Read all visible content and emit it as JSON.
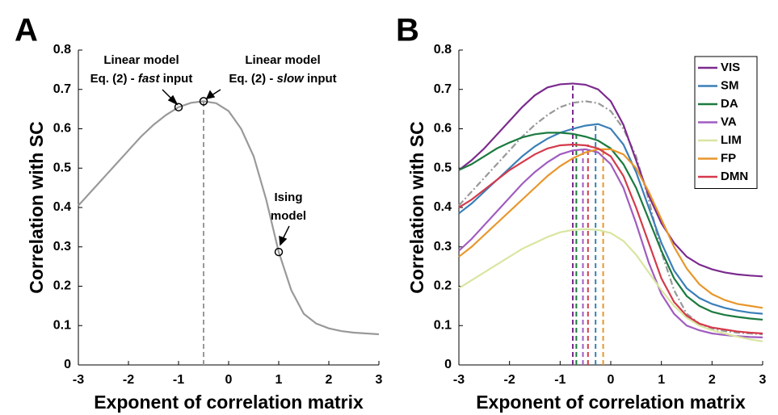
{
  "chart_data": [
    {
      "type": "line",
      "panel_label": "A",
      "x_label": "Exponent of correlation matrix",
      "y_label": "Correlation with SC",
      "xlim": [
        -3,
        3
      ],
      "ylim": [
        0,
        0.8
      ],
      "xticks": [
        -3,
        -2,
        -1,
        0,
        1,
        2,
        3
      ],
      "yticks": [
        0,
        0.1,
        0.2,
        0.3,
        0.4,
        0.5,
        0.6,
        0.7,
        0.8
      ],
      "x": [
        -3,
        -2.75,
        -2.5,
        -2.25,
        -2,
        -1.75,
        -1.5,
        -1.25,
        -1,
        -0.75,
        -0.5,
        -0.25,
        0,
        0.25,
        0.5,
        0.75,
        1,
        1.25,
        1.5,
        1.75,
        2,
        2.25,
        2.5,
        2.75,
        3
      ],
      "series": [
        {
          "color": "#999999",
          "dash": "solid",
          "values": [
            0.405,
            0.44,
            0.475,
            0.51,
            0.545,
            0.58,
            0.61,
            0.635,
            0.655,
            0.666,
            0.67,
            0.665,
            0.645,
            0.6,
            0.53,
            0.42,
            0.287,
            0.19,
            0.13,
            0.105,
            0.093,
            0.086,
            0.082,
            0.08,
            0.078
          ]
        }
      ],
      "points": {
        "x": [
          -1,
          -0.5,
          1
        ],
        "values": [
          0.655,
          0.67,
          0.287
        ]
      },
      "vlines": [
        {
          "x": -0.5,
          "y": 0.67,
          "color": "#999999"
        }
      ],
      "annotations": [
        {
          "line1": "Linear model",
          "line2": [
            "Eq. (2) - ",
            "fast",
            " input"
          ]
        },
        {
          "line1": "Linear model",
          "line2": [
            "Eq. (2) - ",
            "slow",
            " input"
          ]
        },
        {
          "line1": "Ising",
          "line2": [
            "model"
          ]
        }
      ]
    },
    {
      "type": "line",
      "panel_label": "B",
      "x_label": "Exponent of correlation matrix",
      "y_label": "Correlation with SC",
      "xlim": [
        -3,
        3
      ],
      "ylim": [
        0,
        0.8
      ],
      "xticks": [
        -3,
        -2,
        -1,
        0,
        1,
        2,
        3
      ],
      "yticks": [
        0,
        0.1,
        0.2,
        0.3,
        0.4,
        0.5,
        0.6,
        0.7,
        0.8
      ],
      "legend": "upper right",
      "x": [
        -3,
        -2.75,
        -2.5,
        -2.25,
        -2,
        -1.75,
        -1.5,
        -1.25,
        -1,
        -0.75,
        -0.5,
        -0.25,
        0,
        0.25,
        0.5,
        0.75,
        1,
        1.25,
        1.5,
        1.75,
        2,
        2.25,
        2.5,
        2.75,
        3
      ],
      "series": [
        {
          "color": "#999999",
          "dash": "dashdot",
          "values": [
            0.405,
            0.44,
            0.475,
            0.51,
            0.545,
            0.58,
            0.61,
            0.635,
            0.655,
            0.666,
            0.67,
            0.665,
            0.645,
            0.6,
            0.53,
            0.42,
            0.287,
            0.19,
            0.13,
            0.105,
            0.093,
            0.086,
            0.082,
            0.08,
            0.078
          ]
        },
        {
          "name": "VIS",
          "color": "#7b2a8e",
          "dash": "solid",
          "values": [
            0.495,
            0.52,
            0.55,
            0.585,
            0.62,
            0.655,
            0.685,
            0.705,
            0.713,
            0.715,
            0.712,
            0.7,
            0.67,
            0.61,
            0.52,
            0.43,
            0.36,
            0.31,
            0.275,
            0.255,
            0.243,
            0.235,
            0.23,
            0.227,
            0.225
          ]
        },
        {
          "name": "SM",
          "color": "#3a7fb8",
          "dash": "solid",
          "values": [
            0.385,
            0.41,
            0.44,
            0.47,
            0.5,
            0.53,
            0.555,
            0.575,
            0.59,
            0.6,
            0.608,
            0.612,
            0.6,
            0.56,
            0.49,
            0.4,
            0.31,
            0.24,
            0.195,
            0.17,
            0.155,
            0.145,
            0.138,
            0.133,
            0.13
          ]
        },
        {
          "name": "DA",
          "color": "#1b7a3e",
          "dash": "solid",
          "values": [
            0.495,
            0.51,
            0.53,
            0.55,
            0.565,
            0.578,
            0.586,
            0.59,
            0.59,
            0.587,
            0.58,
            0.57,
            0.55,
            0.51,
            0.45,
            0.37,
            0.29,
            0.22,
            0.175,
            0.15,
            0.135,
            0.127,
            0.122,
            0.118,
            0.115
          ]
        },
        {
          "name": "VA",
          "color": "#a05cc0",
          "dash": "solid",
          "values": [
            0.29,
            0.32,
            0.355,
            0.39,
            0.425,
            0.46,
            0.49,
            0.515,
            0.535,
            0.545,
            0.548,
            0.54,
            0.51,
            0.45,
            0.36,
            0.26,
            0.18,
            0.13,
            0.1,
            0.088,
            0.08,
            0.076,
            0.073,
            0.071,
            0.07
          ]
        },
        {
          "name": "LIM",
          "color": "#d8e6a0",
          "dash": "solid",
          "values": [
            0.195,
            0.215,
            0.235,
            0.255,
            0.275,
            0.295,
            0.31,
            0.325,
            0.337,
            0.343,
            0.345,
            0.343,
            0.335,
            0.315,
            0.28,
            0.235,
            0.19,
            0.15,
            0.12,
            0.1,
            0.088,
            0.08,
            0.072,
            0.065,
            0.06
          ]
        },
        {
          "name": "FP",
          "color": "#e8962a",
          "dash": "solid",
          "values": [
            0.275,
            0.3,
            0.33,
            0.36,
            0.39,
            0.42,
            0.45,
            0.48,
            0.505,
            0.525,
            0.54,
            0.548,
            0.548,
            0.535,
            0.5,
            0.44,
            0.37,
            0.3,
            0.245,
            0.205,
            0.18,
            0.165,
            0.155,
            0.15,
            0.145
          ]
        },
        {
          "name": "DMN",
          "color": "#d43a4a",
          "dash": "solid",
          "values": [
            0.4,
            0.42,
            0.445,
            0.47,
            0.495,
            0.515,
            0.535,
            0.55,
            0.558,
            0.56,
            0.558,
            0.55,
            0.53,
            0.48,
            0.4,
            0.31,
            0.22,
            0.16,
            0.125,
            0.105,
            0.095,
            0.09,
            0.085,
            0.082,
            0.08
          ]
        }
      ],
      "vlines": [
        {
          "x": -0.75,
          "y": 0.715,
          "color": "#7b2a8e"
        },
        {
          "x": -0.68,
          "y": 0.59,
          "color": "#1b7a3e"
        },
        {
          "x": -0.55,
          "y": 0.548,
          "color": "#a05cc0"
        },
        {
          "x": -0.45,
          "y": 0.56,
          "color": "#d43a4a"
        },
        {
          "x": -0.3,
          "y": 0.612,
          "color": "#3a7fb8"
        },
        {
          "x": -0.15,
          "y": 0.55,
          "color": "#e8962a"
        }
      ]
    }
  ]
}
